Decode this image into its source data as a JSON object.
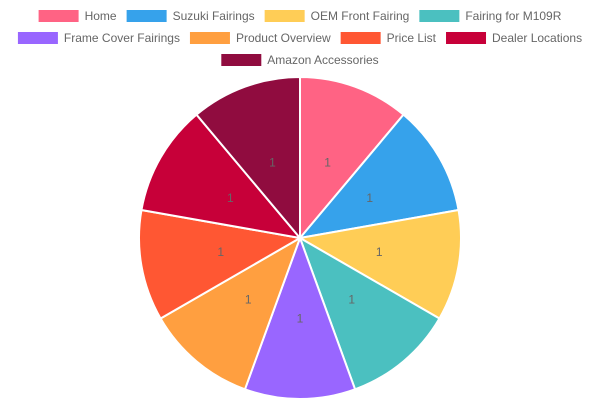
{
  "chart_data": {
    "type": "pie",
    "title": "",
    "legend_position": "top",
    "categories": [
      "Home",
      "Suzuki Fairings",
      "OEM Front Fairing",
      "Fairing for M109R",
      "Frame Cover Fairings",
      "Product Overview",
      "Price List",
      "Dealer Locations",
      "Amazon Accessories"
    ],
    "values": [
      1,
      1,
      1,
      1,
      1,
      1,
      1,
      1,
      1
    ],
    "colors": [
      "#ff6384",
      "#36a2eb",
      "#ffcd56",
      "#4bc0c0",
      "#9966ff",
      "#ff9f40",
      "#ff5733",
      "#c70039",
      "#900c3f"
    ]
  }
}
